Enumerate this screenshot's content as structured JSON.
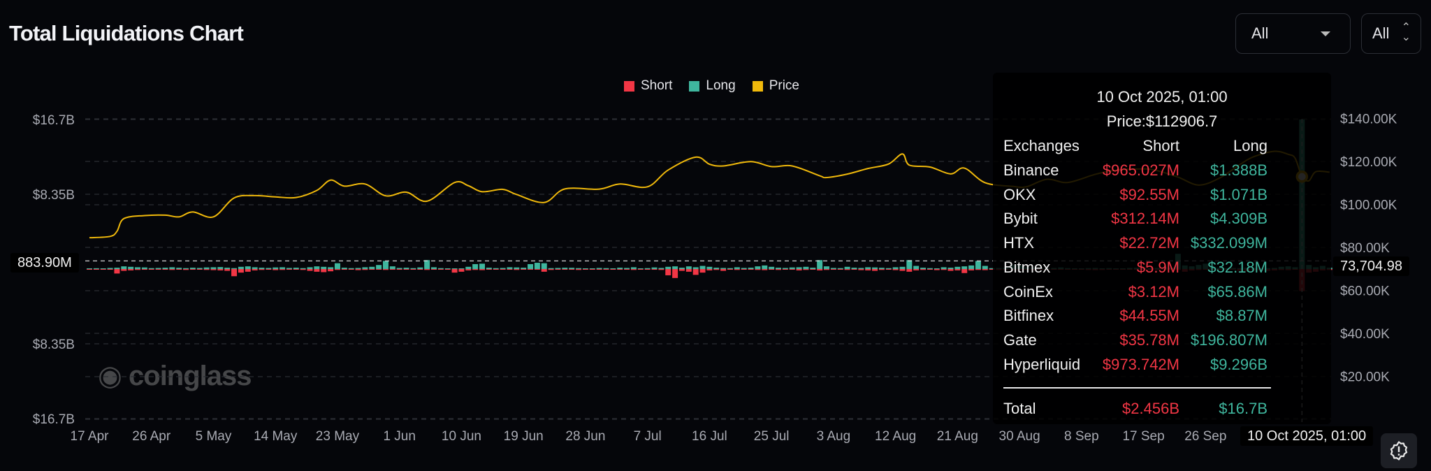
{
  "header": {
    "title": "Total Liquidations Chart"
  },
  "controls": {
    "exchange_select": "All",
    "coin_select": "All"
  },
  "chart_data": {
    "type": "bar+line",
    "title": "Total Liquidations Chart",
    "legend": [
      {
        "name": "Short",
        "color": "#f23645"
      },
      {
        "name": "Long",
        "color": "#3fb69e"
      },
      {
        "name": "Price",
        "color": "#f0b90b"
      }
    ],
    "legend_position": "top-center",
    "grid": true,
    "left_axis": {
      "ylim": [
        -16.7,
        16.7
      ],
      "unit": "B",
      "ticks": [
        {
          "value": 16.7,
          "label": "$16.7B"
        },
        {
          "value": 8.35,
          "label": "$8.35B"
        },
        {
          "value": -8.35,
          "label": "$8.35B"
        },
        {
          "value": -16.7,
          "label": "$16.7B"
        }
      ]
    },
    "right_axis": {
      "ylim": [
        0,
        140000
      ],
      "ticks": [
        {
          "value": 140000,
          "label": "$140.00K"
        },
        {
          "value": 120000,
          "label": "$120.00K"
        },
        {
          "value": 100000,
          "label": "$100.00K"
        },
        {
          "value": 80000,
          "label": "$80.00K"
        },
        {
          "value": 60000,
          "label": "$60.00K"
        },
        {
          "value": 40000,
          "label": "$40.00K"
        },
        {
          "value": 20000,
          "label": "$20.00K"
        }
      ]
    },
    "x_ticks": [
      {
        "date": "2025-04-17",
        "label": "17 Apr"
      },
      {
        "date": "2025-04-26",
        "label": "26 Apr"
      },
      {
        "date": "2025-05-05",
        "label": "5 May"
      },
      {
        "date": "2025-05-14",
        "label": "14 May"
      },
      {
        "date": "2025-05-23",
        "label": "23 May"
      },
      {
        "date": "2025-06-01",
        "label": "1 Jun"
      },
      {
        "date": "2025-06-10",
        "label": "10 Jun"
      },
      {
        "date": "2025-06-19",
        "label": "19 Jun"
      },
      {
        "date": "2025-06-28",
        "label": "28 Jun"
      },
      {
        "date": "2025-07-07",
        "label": "7 Jul"
      },
      {
        "date": "2025-07-16",
        "label": "16 Jul"
      },
      {
        "date": "2025-07-25",
        "label": "25 Jul"
      },
      {
        "date": "2025-08-03",
        "label": "3 Aug"
      },
      {
        "date": "2025-08-12",
        "label": "12 Aug"
      },
      {
        "date": "2025-08-21",
        "label": "21 Aug"
      },
      {
        "date": "2025-08-30",
        "label": "30 Aug"
      },
      {
        "date": "2025-09-08",
        "label": "8 Sep"
      },
      {
        "date": "2025-09-17",
        "label": "17 Sep"
      },
      {
        "date": "2025-09-26",
        "label": "26 Sep"
      }
    ],
    "bars_by_month": [
      {
        "month": "2025-04",
        "first_day": 17,
        "long": [
          0.08,
          0.09,
          0.05,
          0.12,
          0.15,
          0.3,
          0.25,
          0.2,
          0.18,
          0.1,
          0.12,
          0.15,
          0.2,
          0.14
        ],
        "short": [
          0.05,
          0.04,
          0.06,
          0.08,
          0.5,
          0.2,
          0.15,
          0.1,
          0.08,
          0.06,
          0.05,
          0.08,
          0.1,
          0.06
        ]
      },
      {
        "month": "2025-05",
        "first_day": 1,
        "long": [
          0.1,
          0.15,
          0.12,
          0.18,
          0.2,
          0.22,
          0.15,
          0.1,
          0.25,
          0.3,
          0.2,
          0.15,
          0.12,
          0.18,
          0.2,
          0.12,
          0.15,
          0.1,
          0.2,
          0.3,
          0.25,
          0.2,
          0.65,
          0.15,
          0.1,
          0.12,
          0.2,
          0.25,
          0.45,
          0.9,
          0.3
        ],
        "short": [
          0.1,
          0.08,
          0.06,
          0.1,
          0.12,
          0.15,
          0.2,
          0.8,
          0.4,
          0.3,
          0.15,
          0.1,
          0.08,
          0.12,
          0.1,
          0.08,
          0.06,
          0.1,
          0.2,
          0.3,
          0.35,
          0.25,
          0.1,
          0.08,
          0.06,
          0.12,
          0.1,
          0.08,
          0.05,
          0.1,
          0.08
        ]
      },
      {
        "month": "2025-06",
        "first_day": 1,
        "long": [
          0.12,
          0.15,
          0.1,
          0.18,
          1.0,
          0.2,
          0.1,
          0.08,
          0.05,
          0.06,
          0.25,
          0.55,
          0.6,
          0.15,
          0.1,
          0.12,
          0.2,
          0.18,
          0.15,
          0.55,
          0.7,
          0.65,
          0.1,
          0.12,
          0.15,
          0.14,
          0.1,
          0.08,
          0.06,
          0.12
        ],
        "short": [
          0.08,
          0.06,
          0.05,
          0.06,
          0.1,
          0.05,
          0.06,
          0.04,
          0.4,
          0.3,
          0.15,
          0.1,
          0.12,
          0.06,
          0.05,
          0.06,
          0.08,
          0.1,
          0.06,
          0.05,
          0.08,
          0.3,
          0.1,
          0.08,
          0.06,
          0.08,
          0.1,
          0.06,
          0.05,
          0.04
        ]
      },
      {
        "month": "2025-07",
        "first_day": 1,
        "long": [
          0.1,
          0.08,
          0.15,
          0.12,
          0.2,
          0.08,
          0.1,
          0.18,
          0.12,
          0.25,
          0.3,
          0.15,
          0.3,
          0.2,
          0.35,
          0.25,
          0.15,
          0.12,
          0.1,
          0.2,
          0.12,
          0.15,
          0.3,
          0.4,
          0.25,
          0.15,
          0.12,
          0.18,
          0.2,
          0.25,
          0.15
        ],
        "short": [
          0.05,
          0.06,
          0.08,
          0.06,
          0.1,
          0.05,
          0.06,
          0.08,
          0.1,
          0.7,
          1.0,
          0.2,
          0.3,
          0.65,
          0.4,
          0.15,
          0.1,
          0.2,
          0.08,
          0.1,
          0.06,
          0.08,
          0.1,
          0.12,
          0.08,
          0.1,
          0.06,
          0.08,
          0.15,
          0.1,
          0.06
        ]
      },
      {
        "month": "2025-08",
        "first_day": 1,
        "long": [
          1.0,
          0.3,
          0.12,
          0.1,
          0.25,
          0.15,
          0.12,
          0.2,
          0.18,
          0.14,
          0.1,
          0.2,
          0.25,
          1.0,
          0.35,
          0.15,
          0.1,
          0.08,
          0.2,
          0.15,
          0.25,
          0.3,
          0.4,
          0.9,
          0.35,
          0.1,
          0.12,
          0.15,
          0.45,
          0.4,
          0.2
        ],
        "short": [
          0.15,
          0.1,
          0.08,
          0.06,
          0.1,
          0.08,
          0.12,
          0.15,
          0.2,
          0.1,
          0.08,
          0.12,
          0.2,
          0.3,
          0.15,
          0.1,
          0.08,
          0.12,
          0.1,
          0.2,
          0.15,
          0.45,
          0.15,
          0.1,
          0.12,
          0.08,
          0.1,
          0.06,
          0.08,
          0.1,
          0.06
        ]
      },
      {
        "month": "2025-09",
        "first_day": 1,
        "long": [
          0.15,
          0.1,
          0.08,
          0.12,
          0.18,
          0.1,
          0.08,
          0.06,
          0.1,
          0.12,
          0.08,
          0.1,
          0.06,
          0.08,
          0.12,
          0.15,
          0.1,
          0.08,
          0.12,
          0.2,
          0.15,
          1.7,
          0.4,
          0.3,
          0.45,
          0.6,
          0.2,
          0.15,
          0.1,
          0.12
        ],
        "short": [
          0.1,
          0.08,
          0.06,
          0.05,
          0.08,
          0.06,
          0.05,
          0.04,
          0.1,
          0.12,
          0.1,
          0.08,
          0.06,
          0.05,
          0.08,
          0.06,
          0.1,
          0.12,
          0.1,
          0.08,
          0.06,
          0.1,
          0.3,
          0.15,
          0.1,
          0.08,
          0.06,
          0.05,
          0.08,
          0.06
        ]
      },
      {
        "month": "2025-10",
        "first_day": 1,
        "long": [
          0.1,
          0.15,
          0.12,
          0.08,
          0.1,
          0.12,
          0.25,
          0.3,
          0.2,
          16.7,
          0.45,
          0.2,
          0.35,
          0.15
        ],
        "short": [
          0.2,
          0.25,
          0.15,
          0.1,
          0.2,
          0.15,
          0.1,
          0.12,
          0.08,
          2.456,
          0.4,
          0.3,
          0.15,
          0.1
        ]
      }
    ],
    "price": [
      [
        "2025-04-17",
        84500
      ],
      [
        "2025-04-20",
        85100
      ],
      [
        "2025-04-21",
        87500
      ],
      [
        "2025-04-22",
        93400
      ],
      [
        "2025-04-25",
        94800
      ],
      [
        "2025-04-28",
        95000
      ],
      [
        "2025-04-30",
        94200
      ],
      [
        "2025-05-02",
        96500
      ],
      [
        "2025-05-05",
        94200
      ],
      [
        "2025-05-08",
        103000
      ],
      [
        "2025-05-11",
        104100
      ],
      [
        "2025-05-14",
        103500
      ],
      [
        "2025-05-17",
        103200
      ],
      [
        "2025-05-20",
        106500
      ],
      [
        "2025-05-22",
        111300
      ],
      [
        "2025-05-24",
        108500
      ],
      [
        "2025-05-27",
        109500
      ],
      [
        "2025-05-30",
        104000
      ],
      [
        "2025-06-02",
        105700
      ],
      [
        "2025-06-05",
        101500
      ],
      [
        "2025-06-09",
        110200
      ],
      [
        "2025-06-11",
        108700
      ],
      [
        "2025-06-13",
        105900
      ],
      [
        "2025-06-16",
        107000
      ],
      [
        "2025-06-18",
        104600
      ],
      [
        "2025-06-22",
        100900
      ],
      [
        "2025-06-25",
        107200
      ],
      [
        "2025-06-30",
        107100
      ],
      [
        "2025-07-03",
        109500
      ],
      [
        "2025-07-07",
        108200
      ],
      [
        "2025-07-10",
        116000
      ],
      [
        "2025-07-14",
        122000
      ],
      [
        "2025-07-16",
        118700
      ],
      [
        "2025-07-18",
        117900
      ],
      [
        "2025-07-22",
        119900
      ],
      [
        "2025-07-25",
        117600
      ],
      [
        "2025-07-28",
        117900
      ],
      [
        "2025-08-01",
        113300
      ],
      [
        "2025-08-02",
        112500
      ],
      [
        "2025-08-05",
        114100
      ],
      [
        "2025-08-08",
        116700
      ],
      [
        "2025-08-11",
        118800
      ],
      [
        "2025-08-13",
        123500
      ],
      [
        "2025-08-14",
        118300
      ],
      [
        "2025-08-17",
        117400
      ],
      [
        "2025-08-20",
        114200
      ],
      [
        "2025-08-22",
        116900
      ],
      [
        "2025-08-25",
        110100
      ],
      [
        "2025-08-29",
        108400
      ],
      [
        "2025-08-31",
        108200
      ],
      [
        "2025-09-03",
        111700
      ],
      [
        "2025-09-06",
        110200
      ],
      [
        "2025-09-10",
        114000
      ],
      [
        "2025-09-13",
        115900
      ],
      [
        "2025-09-17",
        116500
      ],
      [
        "2025-09-19",
        115700
      ],
      [
        "2025-09-22",
        112700
      ],
      [
        "2025-09-25",
        109000
      ],
      [
        "2025-09-28",
        112200
      ],
      [
        "2025-10-01",
        118600
      ],
      [
        "2025-10-03",
        122200
      ],
      [
        "2025-10-06",
        124700
      ],
      [
        "2025-10-08",
        123300
      ],
      [
        "2025-10-09",
        121500
      ],
      [
        "2025-10-10",
        112906.7
      ],
      [
        "2025-10-11",
        111000
      ],
      [
        "2025-10-12",
        115200
      ],
      [
        "2025-10-14",
        115000
      ]
    ],
    "crosshair": {
      "date": "2025-10-10",
      "x_label": "10 Oct 2025, 01:00",
      "left_value_label": "883.90M",
      "right_value_label": "73,704.98",
      "right_value": 73704.98
    }
  },
  "tooltip": {
    "date": "10 Oct 2025, 01:00",
    "price": "Price:$112906.7",
    "headers": {
      "exchange": "Exchanges",
      "short": "Short",
      "long": "Long"
    },
    "rows": [
      {
        "exchange": "Binance",
        "short": "$965.027M",
        "long": "$1.388B"
      },
      {
        "exchange": "OKX",
        "short": "$92.55M",
        "long": "$1.071B"
      },
      {
        "exchange": "Bybit",
        "short": "$312.14M",
        "long": "$4.309B"
      },
      {
        "exchange": "HTX",
        "short": "$22.72M",
        "long": "$332.099M"
      },
      {
        "exchange": "Bitmex",
        "short": "$5.9M",
        "long": "$32.18M"
      },
      {
        "exchange": "CoinEx",
        "short": "$3.12M",
        "long": "$65.86M"
      },
      {
        "exchange": "Bitfinex",
        "short": "$44.55M",
        "long": "$8.87M"
      },
      {
        "exchange": "Gate",
        "short": "$35.78M",
        "long": "$196.807M"
      },
      {
        "exchange": "Hyperliquid",
        "short": "$973.742M",
        "long": "$9.296B"
      }
    ],
    "total": {
      "label": "Total",
      "short": "$2.456B",
      "long": "$16.7B"
    }
  },
  "watermark": "coinglass",
  "icons": {
    "help": "alert-badge-icon",
    "select_caret": "caret-down-icon",
    "select_updown": "chevron-up-down-icon"
  }
}
